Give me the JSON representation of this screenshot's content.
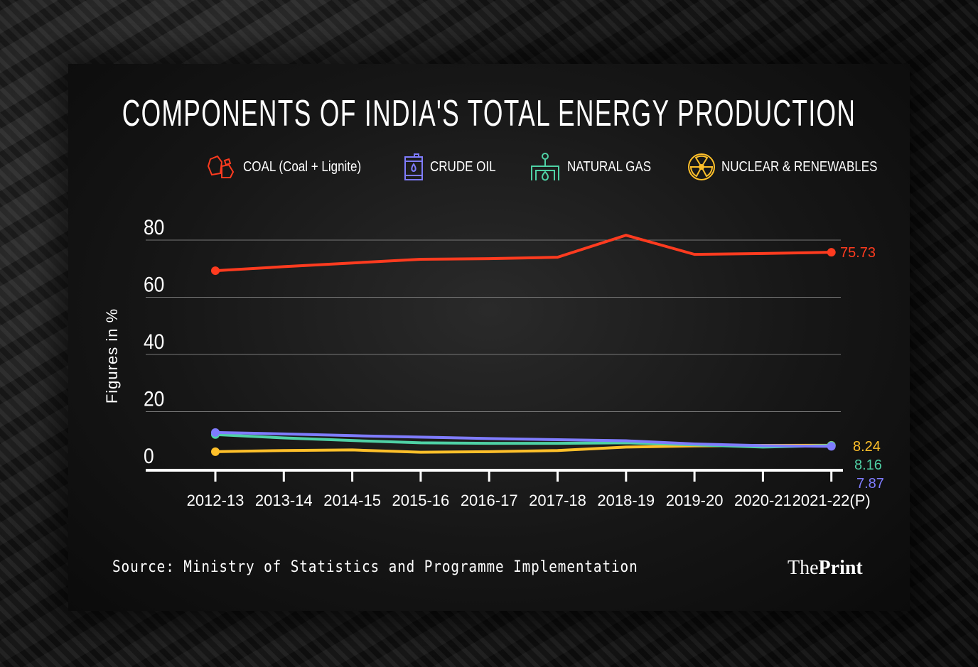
{
  "colors": {
    "coal": "#ff3b1f",
    "crude_oil": "#7f7cff",
    "natural_gas": "#4fd1a5",
    "nuclear_renewables": "#ffc02a"
  },
  "source": "Source: Ministry of Statistics and Programme Implementation",
  "brand": {
    "the": "The",
    "print": "Print"
  },
  "chart_data": {
    "type": "line",
    "title": "COMPONENTS OF INDIA'S TOTAL ENERGY PRODUCTION",
    "ylabel": "Figures in %",
    "xlabel": "",
    "ylim": [
      0,
      80
    ],
    "yticks": [
      "0",
      "20",
      "40",
      "60",
      "80"
    ],
    "grid": true,
    "legend": "top",
    "categories": [
      "2012-13",
      "2013-14",
      "2014-15",
      "2015-16",
      "2016-17",
      "2017-18",
      "2018-19",
      "2019-20",
      "2020-21",
      "2021-22(P)"
    ],
    "series": [
      {
        "name": "COAL (Coal + Lignite)",
        "icon": "coal-icon",
        "color": "#ff3b1f",
        "values": [
          69.3,
          70.7,
          72.0,
          73.3,
          73.5,
          74.0,
          81.7,
          75.0,
          75.3,
          75.73
        ],
        "end_label": "75.73"
      },
      {
        "name": "CRUDE OIL",
        "icon": "oil-barrel-icon",
        "color": "#7f7cff",
        "values": [
          12.7,
          12.2,
          11.6,
          11.1,
          10.6,
          10.2,
          9.8,
          8.7,
          8.1,
          7.87
        ],
        "end_label": "7.87"
      },
      {
        "name": "NATURAL GAS",
        "icon": "gas-pipe-flame-icon",
        "color": "#4fd1a5",
        "values": [
          12.0,
          10.8,
          9.9,
          9.1,
          8.9,
          8.9,
          9.1,
          8.4,
          7.6,
          8.16
        ],
        "end_label": "8.16"
      },
      {
        "name": "NUCLEAR & RENEWABLES",
        "icon": "radiation-icon",
        "color": "#ffc02a",
        "values": [
          6.0,
          6.4,
          6.6,
          5.8,
          6.0,
          6.4,
          7.6,
          8.0,
          8.2,
          8.24
        ],
        "end_label": "8.24"
      }
    ]
  }
}
